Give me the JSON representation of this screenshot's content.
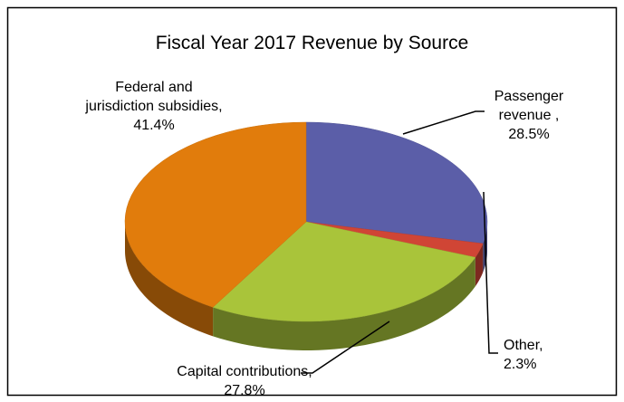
{
  "chart_data": {
    "type": "pie3d",
    "title": "Fiscal Year 2017 Revenue by  Source",
    "categories": [
      "Passenger revenue ,",
      "Other,",
      "Capital contributions,",
      "Federal and jurisdiction subsidies,"
    ],
    "values": [
      28.5,
      2.3,
      27.8,
      41.4
    ],
    "value_labels": [
      "28.5%",
      "2.3%",
      "27.8%",
      "41.4%"
    ],
    "colors": [
      "#5b5ea8",
      "#d04535",
      "#a9c43a",
      "#e17c0c"
    ]
  }
}
